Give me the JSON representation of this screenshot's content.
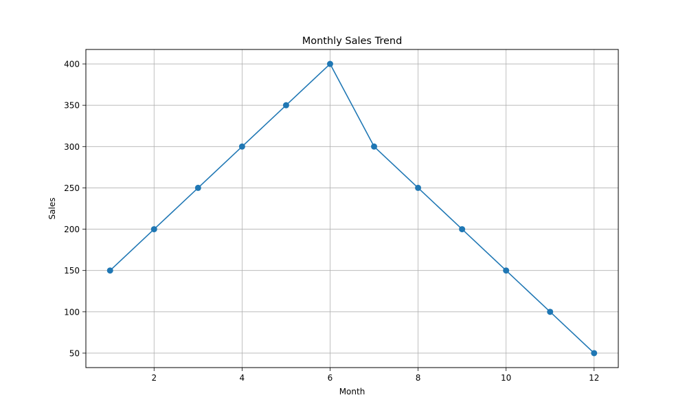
{
  "chart_data": {
    "type": "line",
    "title": "Monthly Sales Trend",
    "xlabel": "Month",
    "ylabel": "Sales",
    "x": [
      1,
      2,
      3,
      4,
      5,
      6,
      7,
      8,
      9,
      10,
      11,
      12
    ],
    "series": [
      {
        "values": [
          150,
          200,
          250,
          300,
          350,
          400,
          300,
          250,
          200,
          150,
          100,
          50
        ],
        "color": "#1f77b4",
        "marker": "circle"
      }
    ],
    "xlim": [
      0.45,
      12.55
    ],
    "ylim": [
      32.5,
      417.5
    ],
    "xticks": [
      2,
      4,
      6,
      8,
      10,
      12
    ],
    "yticks": [
      50,
      100,
      150,
      200,
      250,
      300,
      350,
      400
    ],
    "grid": true
  }
}
